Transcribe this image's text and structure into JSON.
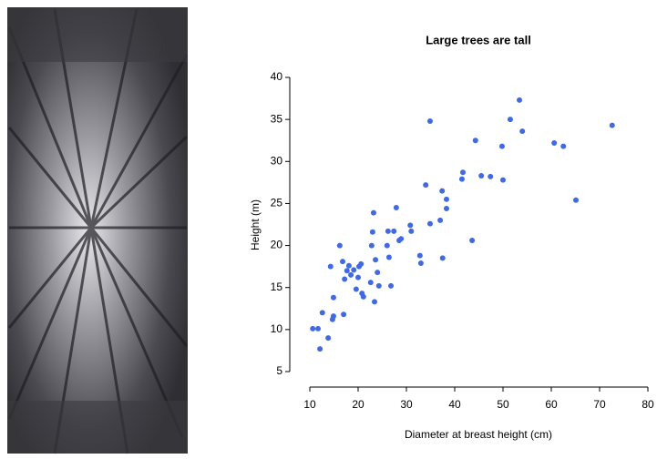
{
  "chart_data": {
    "type": "scatter",
    "title": "Large trees are tall",
    "x_label": "Diameter at breast height (cm)",
    "y_label": "Height (m)",
    "color": "#4169e1",
    "xlim": [
      10,
      80
    ],
    "ylim": [
      5,
      40
    ],
    "xticks": [
      10,
      20,
      30,
      40,
      50,
      60,
      70,
      80
    ],
    "yticks": [
      5,
      10,
      15,
      20,
      25,
      30,
      35,
      40
    ],
    "grid": false,
    "x": [
      10.6,
      11.7,
      12.1,
      12.6,
      13.8,
      14.3,
      14.7,
      14.9,
      14.9,
      16.2,
      16.8,
      17.0,
      17.2,
      17.7,
      18.1,
      18.5,
      19.1,
      19.6,
      20.0,
      20.2,
      20.6,
      20.8,
      21.1,
      22.6,
      22.8,
      23.0,
      23.2,
      23.4,
      23.6,
      24.0,
      24.3,
      26.0,
      26.2,
      26.4,
      26.8,
      27.4,
      27.9,
      28.5,
      28.9,
      30.8,
      31.0,
      32.8,
      33.0,
      34.0,
      34.9,
      34.9,
      37.0,
      37.4,
      37.5,
      38.3,
      38.3,
      41.5,
      41.7,
      43.6,
      44.3,
      45.5,
      47.4,
      49.8,
      50.0,
      51.5,
      53.4,
      54.0,
      60.6,
      62.5,
      65.1,
      72.6
    ],
    "values": [
      10.1,
      10.1,
      7.7,
      12.0,
      9.0,
      17.5,
      11.2,
      11.6,
      13.8,
      20.0,
      18.1,
      11.8,
      16.0,
      17.0,
      17.6,
      16.5,
      17.1,
      14.8,
      16.2,
      17.5,
      17.8,
      14.3,
      13.9,
      15.6,
      20.0,
      21.6,
      23.9,
      13.3,
      18.3,
      16.8,
      15.2,
      20.0,
      21.7,
      18.6,
      15.2,
      21.7,
      24.5,
      20.6,
      20.8,
      22.4,
      21.7,
      18.8,
      17.9,
      27.2,
      22.6,
      34.8,
      23.0,
      26.5,
      18.5,
      25.5,
      24.4,
      27.9,
      28.7,
      20.6,
      32.5,
      28.3,
      28.2,
      31.8,
      27.8,
      35.0,
      37.3,
      33.6,
      32.2,
      31.8,
      25.4,
      34.3
    ]
  }
}
